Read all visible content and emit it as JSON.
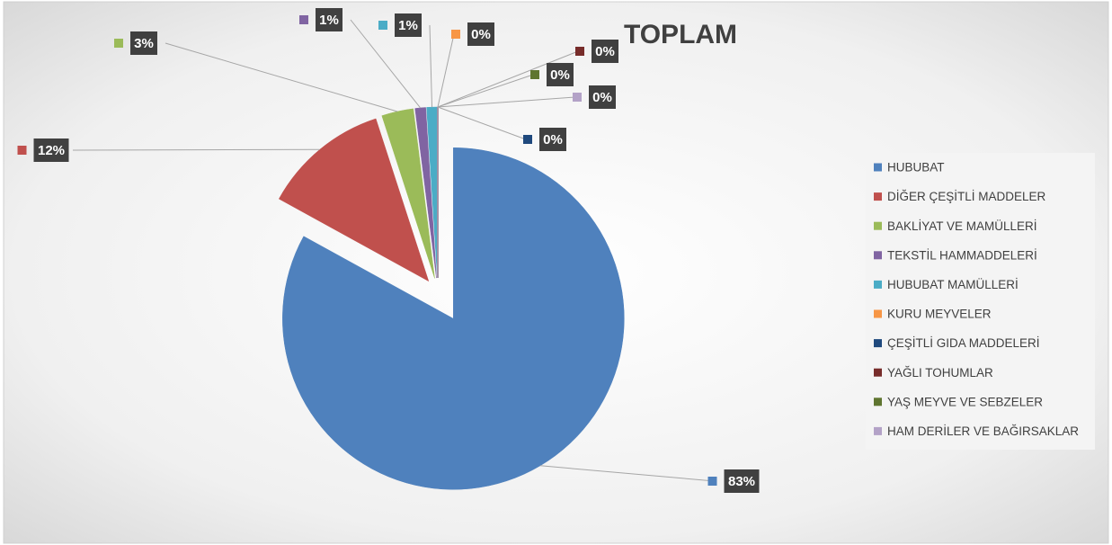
{
  "chart_data": {
    "type": "pie",
    "title": "TOPLAM",
    "categories": [
      "HUBUBAT",
      "DİĞER ÇEŞİTLİ MADDELER",
      "BAKLİYAT VE MAMÜLLERİ",
      "TEKSTİL HAMMADDELERİ",
      "HUBUBAT MAMÜLLERİ",
      "KURU MEYVELER",
      "ÇEŞİTLİ GIDA MADDELERİ",
      "YAĞLI TOHUMLAR",
      "YAŞ MEYVE VE SEBZELER",
      "HAM DERİLER VE BAĞIRSAKLAR"
    ],
    "values": [
      83,
      12,
      3,
      1,
      1,
      0,
      0,
      0,
      0,
      0
    ],
    "value_labels": [
      "83%",
      "12%",
      "3%",
      "1%",
      "1%",
      "0%",
      "0%",
      "0%",
      "0%",
      "0%"
    ],
    "colors": [
      "#4f81bd",
      "#c0504d",
      "#9bbb59",
      "#8064a2",
      "#4bacc6",
      "#f79646",
      "#1f497d",
      "#772c2a",
      "#5f7530",
      "#b3a2c7"
    ],
    "legend": "right"
  }
}
